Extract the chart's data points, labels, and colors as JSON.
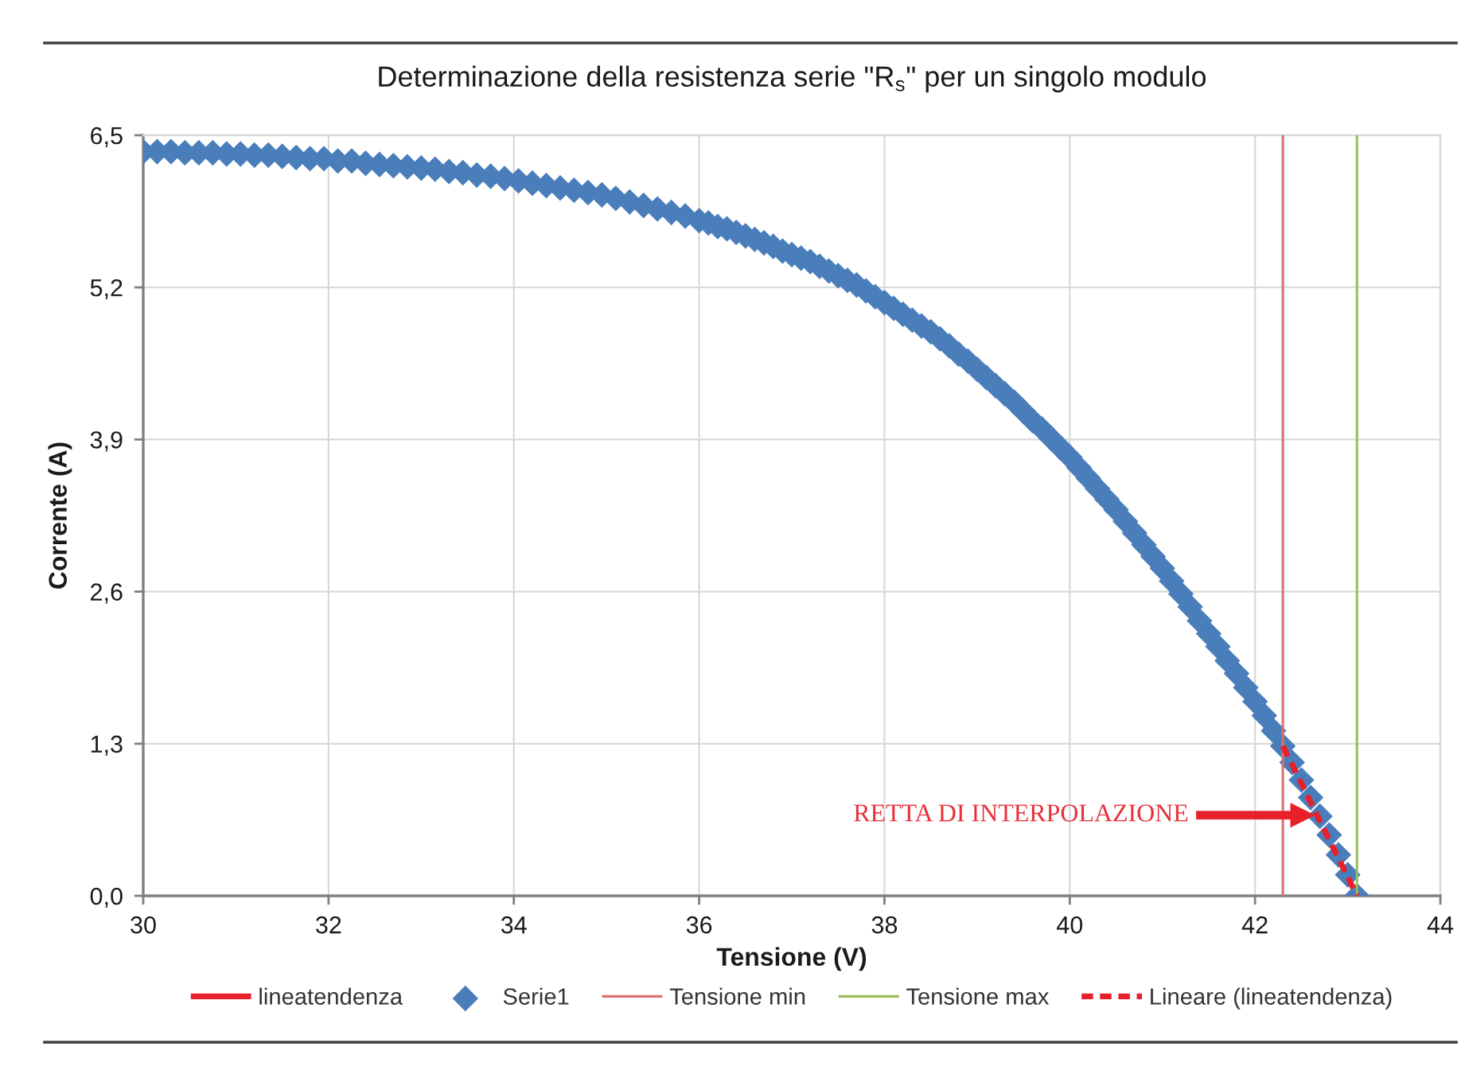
{
  "chart_data": {
    "type": "line",
    "title": "Determinazione della resistenza serie \"R$_{s}$\" per un singolo modulo",
    "xlabel": "Tensione (V)",
    "ylabel": "Corrente (A)",
    "xlim": [
      30,
      44
    ],
    "xticks": [
      30,
      32,
      34,
      36,
      38,
      40,
      42,
      44
    ],
    "ylim": [
      0,
      6.5
    ],
    "yticks": [
      {
        "value": 0,
        "label": "0,0"
      },
      {
        "value": 1.3,
        "label": "1,3"
      },
      {
        "value": 2.6,
        "label": "2,6"
      },
      {
        "value": 3.9,
        "label": "3,9"
      },
      {
        "value": 5.2,
        "label": "5,2"
      },
      {
        "value": 6.5,
        "label": "6,5"
      }
    ],
    "grid": true,
    "legend": "bottom",
    "annotations": [
      "RETTA DI INTERPOLAZIONE"
    ],
    "series": [
      {
        "name": "lineatendenza",
        "line_style": "solid",
        "color": "#e8202a"
      },
      {
        "name": "Serie1",
        "type": "scatter",
        "marker": "diamond",
        "color": "#4a7ebb",
        "x": [
          30.0,
          30.15,
          30.3,
          30.45,
          30.6,
          30.75,
          30.9,
          31.05,
          31.2,
          31.35,
          31.5,
          31.65,
          31.8,
          31.95,
          32.1,
          32.25,
          32.4,
          32.55,
          32.7,
          32.85,
          33.0,
          33.15,
          33.3,
          33.45,
          33.6,
          33.75,
          33.9,
          34.05,
          34.2,
          34.35,
          34.5,
          34.65,
          34.8,
          34.95,
          35.1,
          35.25,
          35.4,
          35.55,
          35.7,
          35.85,
          36.0,
          36.1,
          36.2,
          36.3,
          36.4,
          36.5,
          36.6,
          36.7,
          36.8,
          36.9,
          37.0,
          37.1,
          37.2,
          37.3,
          37.4,
          37.5,
          37.6,
          37.7,
          37.8,
          37.9,
          38.0,
          38.1,
          38.2,
          38.3,
          38.4,
          38.5,
          38.6,
          38.7,
          38.8,
          38.9,
          39.0,
          39.1,
          39.2,
          39.3,
          39.4,
          39.5,
          39.6,
          39.7,
          39.8,
          39.9,
          40.0,
          40.1,
          40.2,
          40.3,
          40.4,
          40.5,
          40.6,
          40.7,
          40.8,
          40.9,
          41.0,
          41.1,
          41.2,
          41.3,
          41.4,
          41.5,
          41.6,
          41.7,
          41.8,
          41.9,
          42.0,
          42.1,
          42.2,
          42.3,
          42.4,
          42.5,
          42.6,
          42.7,
          42.8,
          42.9,
          43.0,
          43.1
        ],
        "values": [
          6.36,
          6.36,
          6.36,
          6.35,
          6.35,
          6.35,
          6.34,
          6.34,
          6.33,
          6.33,
          6.32,
          6.31,
          6.3,
          6.3,
          6.28,
          6.28,
          6.26,
          6.25,
          6.24,
          6.23,
          6.22,
          6.21,
          6.19,
          6.18,
          6.16,
          6.15,
          6.13,
          6.11,
          6.09,
          6.07,
          6.05,
          6.03,
          6.01,
          5.99,
          5.96,
          5.93,
          5.9,
          5.87,
          5.84,
          5.81,
          5.77,
          5.75,
          5.72,
          5.7,
          5.67,
          5.64,
          5.61,
          5.58,
          5.55,
          5.51,
          5.48,
          5.45,
          5.42,
          5.38,
          5.34,
          5.3,
          5.26,
          5.22,
          5.17,
          5.12,
          5.07,
          5.02,
          4.97,
          4.92,
          4.87,
          4.82,
          4.76,
          4.7,
          4.63,
          4.57,
          4.5,
          4.43,
          4.36,
          4.29,
          4.22,
          4.14,
          4.06,
          3.99,
          3.91,
          3.83,
          3.75,
          3.66,
          3.57,
          3.48,
          3.39,
          3.3,
          3.2,
          3.1,
          3.0,
          2.9,
          2.8,
          2.69,
          2.58,
          2.47,
          2.35,
          2.24,
          2.13,
          2.01,
          1.9,
          1.78,
          1.66,
          1.54,
          1.41,
          1.28,
          1.14,
          0.99,
          0.84,
          0.68,
          0.52,
          0.35,
          0.18,
          0.0
        ]
      },
      {
        "name": "Tensione min",
        "line_style": "solid",
        "color": "#d9706e",
        "x": [
          42.3,
          42.3
        ],
        "values": [
          0,
          6.5
        ]
      },
      {
        "name": "Tensione max",
        "line_style": "solid",
        "color": "#9bbb59",
        "x": [
          43.1,
          43.1
        ],
        "values": [
          0,
          6.5
        ]
      },
      {
        "name": "Lineare (lineatendenza)",
        "line_style": "dashed",
        "color": "#e8202a",
        "x": [
          42.3,
          43.1
        ],
        "values": [
          1.28,
          0.0
        ]
      }
    ]
  }
}
